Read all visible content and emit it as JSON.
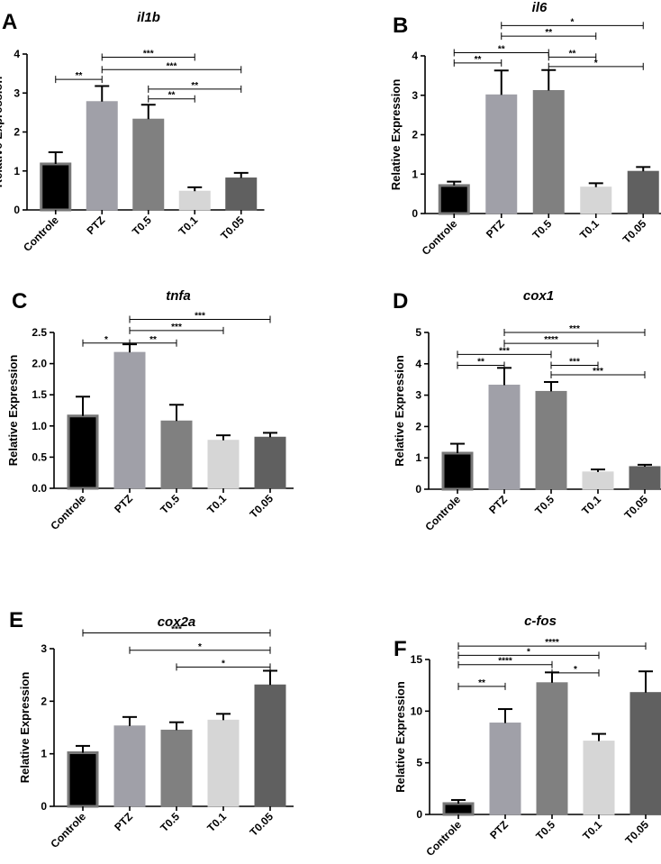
{
  "chart_data": [
    {
      "type": "bar",
      "letter": "A",
      "title": "il1b",
      "ylabel": "Relative Expression",
      "categories": [
        "Controle",
        "PTZ",
        "T0.5",
        "T0.1",
        "T0.05"
      ],
      "values": [
        1.18,
        2.78,
        2.33,
        0.48,
        0.82
      ],
      "errors": [
        0.3,
        0.4,
        0.37,
        0.1,
        0.13
      ],
      "ylim": [
        0,
        4
      ],
      "yticks": [
        "0",
        "1",
        "2",
        "3",
        "4"
      ],
      "colors": [
        "#000000",
        "#a0a0a8",
        "#808080",
        "#d6d6d6",
        "#606060"
      ],
      "significance": [
        {
          "from": 0,
          "to": 1,
          "level": 3.35,
          "label": "**"
        },
        {
          "from": 1,
          "to": 3,
          "level": 3.92,
          "label": "***"
        },
        {
          "from": 1,
          "to": 4,
          "level": 3.6,
          "label": "***"
        },
        {
          "from": 2,
          "to": 4,
          "level": 3.1,
          "label": "**"
        },
        {
          "from": 2,
          "to": 3,
          "level": 2.85,
          "label": "**"
        }
      ]
    },
    {
      "type": "bar",
      "letter": "B",
      "title": "il6",
      "ylabel": "Relative Expression",
      "categories": [
        "Controle",
        "PTZ",
        "T0.5",
        "T0.1",
        "T0.05"
      ],
      "values": [
        0.71,
        3.01,
        3.12,
        0.67,
        1.07
      ],
      "errors": [
        0.1,
        0.62,
        0.52,
        0.1,
        0.11
      ],
      "ylim": [
        0,
        4
      ],
      "yticks": [
        "0",
        "1",
        "2",
        "3",
        "4"
      ],
      "colors": [
        "#000000",
        "#a0a0a8",
        "#808080",
        "#d6d6d6",
        "#606060"
      ],
      "significance": [
        {
          "from": 1,
          "to": 4,
          "level": 4.77,
          "label": "*"
        },
        {
          "from": 1,
          "to": 3,
          "level": 4.5,
          "label": "**"
        },
        {
          "from": 0,
          "to": 2,
          "level": 4.08,
          "label": "**"
        },
        {
          "from": 2,
          "to": 3,
          "level": 3.97,
          "label": "**"
        },
        {
          "from": 0,
          "to": 1,
          "level": 3.82,
          "label": "**"
        },
        {
          "from": 2,
          "to": 4,
          "level": 3.73,
          "label": "*"
        }
      ]
    },
    {
      "type": "bar",
      "letter": "C",
      "title": "tnfa",
      "ylabel": "Relative Expression",
      "categories": [
        "Controle",
        "PTZ",
        "T0.5",
        "T0.1",
        "T0.05"
      ],
      "values": [
        1.16,
        2.18,
        1.08,
        0.77,
        0.82
      ],
      "errors": [
        0.31,
        0.13,
        0.26,
        0.08,
        0.07
      ],
      "ylim": [
        0,
        2.5
      ],
      "yticks": [
        "0.0",
        "0.5",
        "1.0",
        "1.5",
        "2.0",
        "2.5"
      ],
      "colors": [
        "#000000",
        "#a0a0a8",
        "#808080",
        "#d6d6d6",
        "#606060"
      ],
      "significance": [
        {
          "from": 1,
          "to": 4,
          "level": 2.71,
          "label": "***"
        },
        {
          "from": 1,
          "to": 3,
          "level": 2.53,
          "label": "***"
        },
        {
          "from": 0,
          "to": 1,
          "level": 2.33,
          "label": "*"
        },
        {
          "from": 1,
          "to": 2,
          "level": 2.33,
          "label": "**"
        }
      ]
    },
    {
      "type": "bar",
      "letter": "D",
      "title": "cox1",
      "ylabel": "Relative Expression",
      "categories": [
        "Controle",
        "PTZ",
        "T0.5",
        "T0.1",
        "T0.05"
      ],
      "values": [
        1.15,
        3.32,
        3.12,
        0.55,
        0.72
      ],
      "errors": [
        0.3,
        0.55,
        0.3,
        0.08,
        0.06
      ],
      "ylim": [
        0,
        5
      ],
      "yticks": [
        "0",
        "1",
        "2",
        "3",
        "4",
        "5"
      ],
      "colors": [
        "#000000",
        "#a0a0a8",
        "#808080",
        "#d6d6d6",
        "#606060"
      ],
      "significance": [
        {
          "from": 1,
          "to": 4,
          "level": 5.0,
          "label": "***"
        },
        {
          "from": 1,
          "to": 3,
          "level": 4.65,
          "label": "****"
        },
        {
          "from": 0,
          "to": 2,
          "level": 4.3,
          "label": "***"
        },
        {
          "from": 0,
          "to": 1,
          "level": 3.95,
          "label": "**"
        },
        {
          "from": 2,
          "to": 3,
          "level": 3.95,
          "label": "***"
        },
        {
          "from": 2,
          "to": 4,
          "level": 3.65,
          "label": "***"
        }
      ]
    },
    {
      "type": "bar",
      "letter": "E",
      "title": "cox2a",
      "ylabel": "Relative Expression",
      "categories": [
        "Controle",
        "PTZ",
        "T0.5",
        "T0.1",
        "T0.05"
      ],
      "values": [
        1.02,
        1.53,
        1.45,
        1.64,
        2.31
      ],
      "errors": [
        0.13,
        0.17,
        0.15,
        0.12,
        0.27
      ],
      "ylim": [
        0,
        3
      ],
      "yticks": [
        "0",
        "1",
        "2",
        "3"
      ],
      "colors": [
        "#000000",
        "#a0a0a8",
        "#808080",
        "#d6d6d6",
        "#606060"
      ],
      "significance": [
        {
          "from": 0,
          "to": 4,
          "level": 3.3,
          "label": "***"
        },
        {
          "from": 1,
          "to": 4,
          "level": 2.97,
          "label": "*"
        },
        {
          "from": 2,
          "to": 4,
          "level": 2.65,
          "label": "*"
        }
      ]
    },
    {
      "type": "bar",
      "letter": "F",
      "title": "c-fos",
      "ylabel": "Relative Expression",
      "categories": [
        "Controle",
        "PTZ",
        "T0.5",
        "T0.1",
        "T0.05"
      ],
      "values": [
        1.05,
        8.85,
        12.75,
        7.1,
        11.8
      ],
      "errors": [
        0.35,
        1.35,
        1.0,
        0.7,
        2.05
      ],
      "ylim": [
        0,
        15
      ],
      "yticks": [
        "0",
        "5",
        "10",
        "15"
      ],
      "colors": [
        "#000000",
        "#a0a0a8",
        "#808080",
        "#d6d6d6",
        "#606060"
      ],
      "significance": [
        {
          "from": 0,
          "to": 4,
          "level": 16.3,
          "label": "****"
        },
        {
          "from": 0,
          "to": 3,
          "level": 15.4,
          "label": "*"
        },
        {
          "from": 0,
          "to": 2,
          "level": 14.5,
          "label": "****"
        },
        {
          "from": 2,
          "to": 3,
          "level": 13.7,
          "label": "*"
        },
        {
          "from": 0,
          "to": 1,
          "level": 12.4,
          "label": "**"
        }
      ]
    }
  ]
}
